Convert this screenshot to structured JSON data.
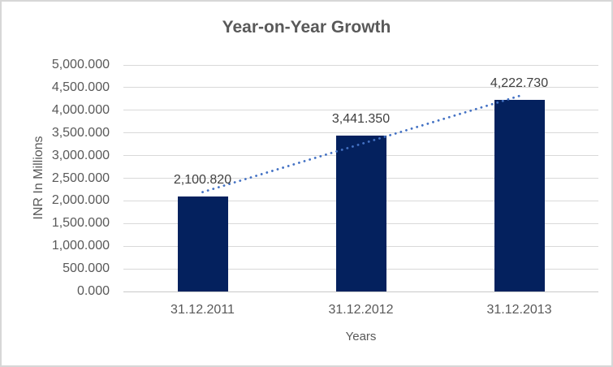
{
  "window": {
    "background": "#ffffff",
    "border_color": "#d7d7d7"
  },
  "chart_data": {
    "type": "bar",
    "title": "Year-on-Year Growth",
    "categories": [
      "31.12.2011",
      "31.12.2012",
      "31.12.2013"
    ],
    "values": [
      2100.82,
      3441.35,
      4222.73
    ],
    "data_labels": [
      "2,100.820",
      "3,441.350",
      "4,222.730"
    ],
    "xlabel": "Years",
    "ylabel": "INR In Millions",
    "ylim": [
      0,
      5000
    ],
    "yticks": {
      "values": [
        0,
        500,
        1000,
        1500,
        2000,
        2500,
        3000,
        3500,
        4000,
        4500,
        5000
      ],
      "labels": [
        "0.000",
        "500.000",
        "1,000.000",
        "1,500.000",
        "2,000.000",
        "2,500.000",
        "3,000.000",
        "3,500.000",
        "4,000.000",
        "4,500.000",
        "5,000.000"
      ]
    },
    "grid": true,
    "legend": "none",
    "trendline": {
      "type": "linear",
      "style": "dotted"
    },
    "colors": {
      "bar": "#04215e",
      "trendline": "#4472c4",
      "gridline": "#d9d9d9",
      "axis_line": "#c9c9c9",
      "title_text": "#595959",
      "axis_text": "#595959",
      "data_label_text": "#404040"
    }
  }
}
